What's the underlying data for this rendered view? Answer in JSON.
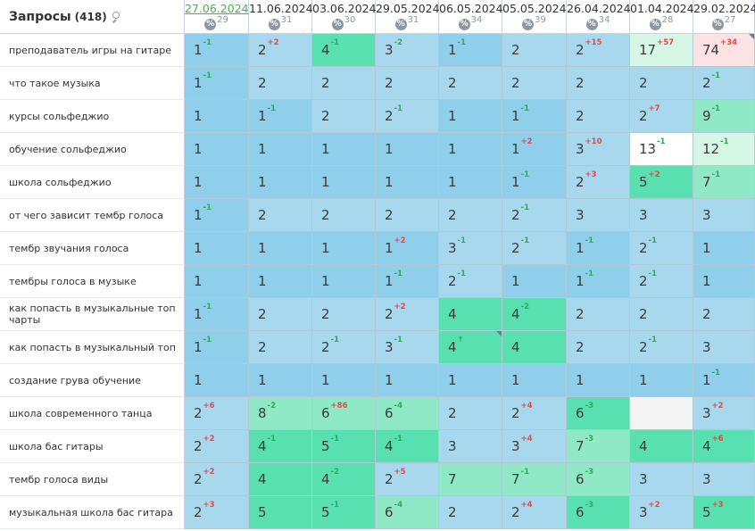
{
  "header": {
    "title": "Запросы",
    "count": "(418)",
    "icon": "search-icon"
  },
  "dates": [
    {
      "label": "27.06.2024",
      "pct": "29",
      "link": true
    },
    {
      "label": "11.06.2024",
      "pct": "31",
      "link": false
    },
    {
      "label": "03.06.2024",
      "pct": "30",
      "link": false
    },
    {
      "label": "29.05.2024",
      "pct": "31",
      "link": false
    },
    {
      "label": "06.05.2024",
      "pct": "34",
      "link": false
    },
    {
      "label": "05.05.2024",
      "pct": "39",
      "link": false
    },
    {
      "label": "26.04.2024",
      "pct": "34",
      "link": false
    },
    {
      "label": "01.04.2024",
      "pct": "28",
      "link": false
    },
    {
      "label": "29.02.2024",
      "pct": "27",
      "link": false
    }
  ],
  "pct_symbol": "%",
  "colors": {
    "top1_3": "#a8d8ee",
    "pos1": "#8fcfec",
    "top4_10": "#58e0b0",
    "top4_10_light": "#8fe9c6",
    "top11_30": "#d6f6e6",
    "top31_plus": "#fde3e3",
    "none": "#f4f4f4",
    "white": "#ffffff"
  },
  "rows": [
    {
      "query": "преподаватель игры на гитаре",
      "cells": [
        {
          "v": "1",
          "d": "-1",
          "c": "pos1"
        },
        {
          "v": "2",
          "d": "+2",
          "c": "top1_3"
        },
        {
          "v": "4",
          "d": "-1",
          "c": "top4_10"
        },
        {
          "v": "3",
          "d": "-2",
          "c": "top1_3"
        },
        {
          "v": "1",
          "d": "-1",
          "c": "pos1"
        },
        {
          "v": "2",
          "d": "",
          "c": "top1_3"
        },
        {
          "v": "2",
          "d": "+15",
          "c": "top1_3"
        },
        {
          "v": "17",
          "d": "+57",
          "c": "top11_30"
        },
        {
          "v": "74",
          "d": "+34",
          "c": "top31_plus",
          "m": true
        }
      ]
    },
    {
      "query": "что такое музыка",
      "cells": [
        {
          "v": "1",
          "d": "-1",
          "c": "pos1"
        },
        {
          "v": "2",
          "d": "",
          "c": "top1_3"
        },
        {
          "v": "2",
          "d": "",
          "c": "top1_3"
        },
        {
          "v": "2",
          "d": "",
          "c": "top1_3"
        },
        {
          "v": "2",
          "d": "",
          "c": "top1_3"
        },
        {
          "v": "2",
          "d": "",
          "c": "top1_3"
        },
        {
          "v": "2",
          "d": "",
          "c": "top1_3"
        },
        {
          "v": "2",
          "d": "",
          "c": "top1_3"
        },
        {
          "v": "2",
          "d": "-1",
          "c": "top1_3"
        }
      ]
    },
    {
      "query": "курсы сольфеджио",
      "cells": [
        {
          "v": "1",
          "d": "",
          "c": "pos1"
        },
        {
          "v": "1",
          "d": "-1",
          "c": "pos1"
        },
        {
          "v": "2",
          "d": "",
          "c": "top1_3"
        },
        {
          "v": "2",
          "d": "-1",
          "c": "top1_3"
        },
        {
          "v": "1",
          "d": "",
          "c": "pos1"
        },
        {
          "v": "1",
          "d": "-1",
          "c": "pos1"
        },
        {
          "v": "2",
          "d": "",
          "c": "top1_3"
        },
        {
          "v": "2",
          "d": "+7",
          "c": "top1_3"
        },
        {
          "v": "9",
          "d": "-1",
          "c": "top4_10_light"
        }
      ]
    },
    {
      "query": "обучение сольфеджио",
      "cells": [
        {
          "v": "1",
          "d": "",
          "c": "pos1"
        },
        {
          "v": "1",
          "d": "",
          "c": "pos1"
        },
        {
          "v": "1",
          "d": "",
          "c": "pos1"
        },
        {
          "v": "1",
          "d": "",
          "c": "pos1"
        },
        {
          "v": "1",
          "d": "",
          "c": "pos1"
        },
        {
          "v": "1",
          "d": "+2",
          "c": "pos1"
        },
        {
          "v": "3",
          "d": "+10",
          "c": "top1_3"
        },
        {
          "v": "13",
          "d": "-1",
          "c": "white"
        },
        {
          "v": "12",
          "d": "-1",
          "c": "top11_30"
        }
      ]
    },
    {
      "query": "школа сольфеджио",
      "cells": [
        {
          "v": "1",
          "d": "",
          "c": "pos1"
        },
        {
          "v": "1",
          "d": "",
          "c": "pos1"
        },
        {
          "v": "1",
          "d": "",
          "c": "pos1"
        },
        {
          "v": "1",
          "d": "",
          "c": "pos1"
        },
        {
          "v": "1",
          "d": "",
          "c": "pos1"
        },
        {
          "v": "1",
          "d": "-1",
          "c": "pos1"
        },
        {
          "v": "2",
          "d": "+3",
          "c": "top1_3"
        },
        {
          "v": "5",
          "d": "+2",
          "c": "top4_10"
        },
        {
          "v": "7",
          "d": "-1",
          "c": "top4_10_light"
        }
      ]
    },
    {
      "query": "от чего зависит тембр голоса",
      "cells": [
        {
          "v": "1",
          "d": "-1",
          "c": "pos1"
        },
        {
          "v": "2",
          "d": "",
          "c": "top1_3"
        },
        {
          "v": "2",
          "d": "",
          "c": "top1_3"
        },
        {
          "v": "2",
          "d": "",
          "c": "top1_3"
        },
        {
          "v": "2",
          "d": "",
          "c": "top1_3"
        },
        {
          "v": "2",
          "d": "-1",
          "c": "top1_3"
        },
        {
          "v": "3",
          "d": "",
          "c": "top1_3"
        },
        {
          "v": "3",
          "d": "",
          "c": "top1_3"
        },
        {
          "v": "3",
          "d": "",
          "c": "top1_3"
        }
      ]
    },
    {
      "query": "тембр звучания голоса",
      "cells": [
        {
          "v": "1",
          "d": "",
          "c": "pos1"
        },
        {
          "v": "1",
          "d": "",
          "c": "pos1"
        },
        {
          "v": "1",
          "d": "",
          "c": "pos1"
        },
        {
          "v": "1",
          "d": "+2",
          "c": "pos1"
        },
        {
          "v": "3",
          "d": "-1",
          "c": "top1_3"
        },
        {
          "v": "2",
          "d": "-1",
          "c": "top1_3"
        },
        {
          "v": "1",
          "d": "-1",
          "c": "pos1"
        },
        {
          "v": "2",
          "d": "-1",
          "c": "top1_3"
        },
        {
          "v": "1",
          "d": "",
          "c": "pos1"
        }
      ]
    },
    {
      "query": "тембры голоса в музыке",
      "cells": [
        {
          "v": "1",
          "d": "",
          "c": "pos1"
        },
        {
          "v": "1",
          "d": "",
          "c": "pos1"
        },
        {
          "v": "1",
          "d": "",
          "c": "pos1"
        },
        {
          "v": "1",
          "d": "-1",
          "c": "pos1"
        },
        {
          "v": "2",
          "d": "-1",
          "c": "top1_3"
        },
        {
          "v": "1",
          "d": "",
          "c": "pos1"
        },
        {
          "v": "1",
          "d": "-1",
          "c": "pos1"
        },
        {
          "v": "2",
          "d": "-1",
          "c": "top1_3"
        },
        {
          "v": "1",
          "d": "",
          "c": "pos1"
        }
      ]
    },
    {
      "query": "как попасть в музыкальные топ чарты",
      "cells": [
        {
          "v": "1",
          "d": "-1",
          "c": "pos1"
        },
        {
          "v": "2",
          "d": "",
          "c": "top1_3"
        },
        {
          "v": "2",
          "d": "",
          "c": "top1_3"
        },
        {
          "v": "2",
          "d": "+2",
          "c": "top1_3"
        },
        {
          "v": "4",
          "d": "",
          "c": "top4_10"
        },
        {
          "v": "4",
          "d": "-2",
          "c": "top4_10"
        },
        {
          "v": "2",
          "d": "",
          "c": "top1_3"
        },
        {
          "v": "2",
          "d": "",
          "c": "top1_3"
        },
        {
          "v": "2",
          "d": "",
          "c": "top1_3"
        }
      ]
    },
    {
      "query": "как попасть в музыкальный топ",
      "cells": [
        {
          "v": "1",
          "d": "-1",
          "c": "pos1"
        },
        {
          "v": "2",
          "d": "",
          "c": "top1_3"
        },
        {
          "v": "2",
          "d": "-1",
          "c": "top1_3"
        },
        {
          "v": "3",
          "d": "-1",
          "c": "top1_3"
        },
        {
          "v": "4",
          "d": "↑",
          "c": "top4_10",
          "m": true
        },
        {
          "v": "4",
          "d": "",
          "c": "top4_10"
        },
        {
          "v": "2",
          "d": "",
          "c": "top1_3"
        },
        {
          "v": "2",
          "d": "-1",
          "c": "top1_3"
        },
        {
          "v": "3",
          "d": "",
          "c": "top1_3"
        }
      ]
    },
    {
      "query": "создание грува обучение",
      "cells": [
        {
          "v": "1",
          "d": "",
          "c": "pos1"
        },
        {
          "v": "1",
          "d": "",
          "c": "pos1"
        },
        {
          "v": "1",
          "d": "",
          "c": "pos1"
        },
        {
          "v": "1",
          "d": "",
          "c": "pos1"
        },
        {
          "v": "1",
          "d": "",
          "c": "pos1"
        },
        {
          "v": "1",
          "d": "",
          "c": "pos1"
        },
        {
          "v": "1",
          "d": "",
          "c": "pos1"
        },
        {
          "v": "1",
          "d": "",
          "c": "pos1"
        },
        {
          "v": "1",
          "d": "-1",
          "c": "pos1"
        }
      ]
    },
    {
      "query": "школа современного танца",
      "cells": [
        {
          "v": "2",
          "d": "+6",
          "c": "top1_3"
        },
        {
          "v": "8",
          "d": "-2",
          "c": "top4_10_light"
        },
        {
          "v": "6",
          "d": "+86",
          "c": "top4_10_light"
        },
        {
          "v": "6",
          "d": "-4",
          "c": "top4_10_light"
        },
        {
          "v": "2",
          "d": "",
          "c": "top1_3"
        },
        {
          "v": "2",
          "d": "+4",
          "c": "top1_3"
        },
        {
          "v": "6",
          "d": "-3",
          "c": "top4_10"
        },
        {
          "v": "",
          "d": "",
          "c": "none"
        },
        {
          "v": "3",
          "d": "+2",
          "c": "top1_3"
        }
      ]
    },
    {
      "query": "школа бас гитары",
      "cells": [
        {
          "v": "2",
          "d": "+2",
          "c": "top1_3"
        },
        {
          "v": "4",
          "d": "-1",
          "c": "top4_10"
        },
        {
          "v": "5",
          "d": "-1",
          "c": "top4_10"
        },
        {
          "v": "4",
          "d": "-1",
          "c": "top4_10"
        },
        {
          "v": "3",
          "d": "",
          "c": "top1_3"
        },
        {
          "v": "3",
          "d": "+4",
          "c": "top1_3"
        },
        {
          "v": "7",
          "d": "-3",
          "c": "top4_10_light"
        },
        {
          "v": "4",
          "d": "",
          "c": "top4_10"
        },
        {
          "v": "4",
          "d": "+6",
          "c": "top4_10"
        }
      ]
    },
    {
      "query": "тембр голоса виды",
      "cells": [
        {
          "v": "2",
          "d": "+2",
          "c": "top1_3"
        },
        {
          "v": "4",
          "d": "",
          "c": "top4_10"
        },
        {
          "v": "4",
          "d": "-2",
          "c": "top4_10"
        },
        {
          "v": "2",
          "d": "+5",
          "c": "top1_3"
        },
        {
          "v": "7",
          "d": "",
          "c": "top4_10_light"
        },
        {
          "v": "7",
          "d": "-1",
          "c": "top4_10_light"
        },
        {
          "v": "6",
          "d": "-3",
          "c": "top4_10_light"
        },
        {
          "v": "3",
          "d": "",
          "c": "top1_3"
        },
        {
          "v": "3",
          "d": "",
          "c": "top1_3"
        }
      ]
    },
    {
      "query": "музыкальная школа бас гитара",
      "cells": [
        {
          "v": "2",
          "d": "+3",
          "c": "top1_3"
        },
        {
          "v": "5",
          "d": "",
          "c": "top4_10"
        },
        {
          "v": "5",
          "d": "-1",
          "c": "top4_10"
        },
        {
          "v": "6",
          "d": "-4",
          "c": "top4_10_light"
        },
        {
          "v": "2",
          "d": "",
          "c": "top1_3"
        },
        {
          "v": "2",
          "d": "+4",
          "c": "top1_3"
        },
        {
          "v": "6",
          "d": "-3",
          "c": "top4_10"
        },
        {
          "v": "3",
          "d": "+2",
          "c": "top1_3"
        },
        {
          "v": "5",
          "d": "+3",
          "c": "top4_10"
        }
      ]
    }
  ]
}
